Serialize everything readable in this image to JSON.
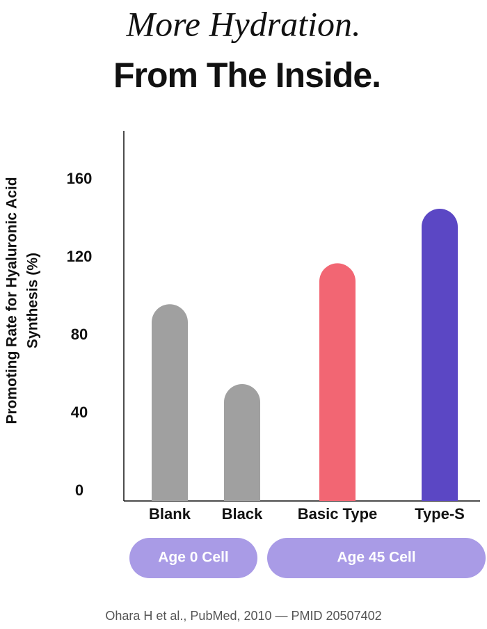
{
  "chart_data": {
    "type": "bar",
    "title": "More Hydration.",
    "subtitle": "From The Inside.",
    "y_label": [
      "Promoting Rate for Hyaluronic Acid",
      "Synthesis (%)"
    ],
    "categories": [
      "Blank",
      "Black",
      "Basic Type",
      "Type-S"
    ],
    "values": [
      96,
      55,
      117,
      145
    ],
    "colors": [
      "#a0a0a0",
      "#a0a0a0",
      "#f26673",
      "#5b47c4"
    ],
    "groups": [
      "Age 0 Cell",
      "Age 45 Cell"
    ],
    "group_color": "#a99be6",
    "ylim": [
      -5,
      185
    ],
    "yticks": [
      0,
      40,
      80,
      120,
      160
    ],
    "source": "Ohara H et al., PubMed, 2010 — PMID 20507402"
  }
}
